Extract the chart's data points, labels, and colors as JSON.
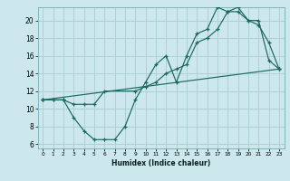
{
  "xlabel": "Humidex (Indice chaleur)",
  "bg_color": "#cce8ec",
  "grid_color": "#b0d0d8",
  "line_color": "#1a6860",
  "xlim": [
    -0.5,
    23.5
  ],
  "ylim": [
    5.5,
    21.5
  ],
  "yticks": [
    6,
    8,
    10,
    12,
    14,
    16,
    18,
    20
  ],
  "xticks": [
    0,
    1,
    2,
    3,
    4,
    5,
    6,
    7,
    8,
    9,
    10,
    11,
    12,
    13,
    14,
    15,
    16,
    17,
    18,
    19,
    20,
    21,
    22,
    23
  ],
  "line1_x": [
    0,
    1,
    2,
    3,
    4,
    5,
    6,
    7,
    8,
    9,
    10,
    11,
    12,
    13,
    14,
    15,
    16,
    17,
    18,
    19,
    20,
    21,
    22,
    23
  ],
  "line1_y": [
    11,
    11,
    11,
    9,
    7.5,
    6.5,
    6.5,
    6.5,
    8,
    11,
    13,
    15,
    16,
    13,
    16,
    18.5,
    19,
    21.5,
    21,
    21,
    20,
    20,
    15.5,
    14.5
  ],
  "line2_x": [
    0,
    1,
    2,
    3,
    4,
    5,
    6,
    9,
    10,
    11,
    12,
    13,
    14,
    15,
    16,
    17,
    18,
    19,
    20,
    21,
    22,
    23
  ],
  "line2_y": [
    11,
    11,
    11,
    10.5,
    10.5,
    10.5,
    12,
    12,
    12.5,
    13,
    14,
    14.5,
    15,
    17.5,
    18,
    19,
    21,
    21.5,
    20,
    19.5,
    17.5,
    14.5
  ],
  "line3_x": [
    0,
    23
  ],
  "line3_y": [
    11,
    14.5
  ]
}
